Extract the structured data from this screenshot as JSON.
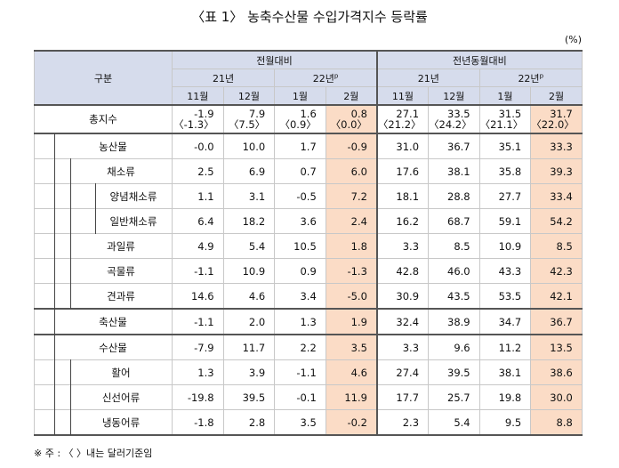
{
  "title": "〈표 1〉 농축수산물 수입가격지수 등락률",
  "unit": "(%)",
  "header": {
    "category": "구분",
    "group_mom": "전월대비",
    "group_yoy": "전년동월대비",
    "year21": "21년",
    "year22": "22년",
    "year22_sup": "p",
    "months": [
      "11월",
      "12월",
      "1월",
      "2월"
    ]
  },
  "rows": [
    {
      "label": "총지수",
      "mom": [
        "-1.9",
        "7.9",
        "1.6",
        "0.8"
      ],
      "mom2": [
        "〈-1.3〉",
        "〈7.5〉",
        "〈0.9〉",
        "〈0.0〉"
      ],
      "yoy": [
        "27.1",
        "33.5",
        "31.5",
        "31.7"
      ],
      "yoy2": [
        "〈21.2〉",
        "〈24.2〉",
        "〈21.1〉",
        "〈22.0〉"
      ]
    },
    {
      "label": "농산물",
      "mom": [
        "-0.0",
        "10.0",
        "1.7",
        "-0.9"
      ],
      "yoy": [
        "31.0",
        "36.7",
        "35.1",
        "33.3"
      ]
    },
    {
      "label": "채소류",
      "mom": [
        "2.5",
        "6.9",
        "0.7",
        "6.0"
      ],
      "yoy": [
        "17.6",
        "38.1",
        "35.8",
        "39.3"
      ]
    },
    {
      "label": "양념채소류",
      "mom": [
        "1.1",
        "3.1",
        "-0.5",
        "7.2"
      ],
      "yoy": [
        "18.1",
        "28.8",
        "27.7",
        "33.4"
      ]
    },
    {
      "label": "일반채소류",
      "mom": [
        "6.4",
        "18.2",
        "3.6",
        "2.4"
      ],
      "yoy": [
        "16.2",
        "68.7",
        "59.1",
        "54.2"
      ]
    },
    {
      "label": "과일류",
      "mom": [
        "4.9",
        "5.4",
        "10.5",
        "1.8"
      ],
      "yoy": [
        "3.3",
        "8.5",
        "10.9",
        "8.5"
      ]
    },
    {
      "label": "곡물류",
      "mom": [
        "-1.1",
        "10.9",
        "0.9",
        "-1.3"
      ],
      "yoy": [
        "42.8",
        "46.0",
        "43.3",
        "42.3"
      ]
    },
    {
      "label": "견과류",
      "mom": [
        "14.6",
        "4.6",
        "3.4",
        "-5.0"
      ],
      "yoy": [
        "30.9",
        "43.5",
        "53.5",
        "42.1"
      ]
    },
    {
      "label": "축산물",
      "mom": [
        "-1.1",
        "2.0",
        "1.3",
        "1.9"
      ],
      "yoy": [
        "32.4",
        "38.9",
        "34.7",
        "36.7"
      ]
    },
    {
      "label": "수산물",
      "mom": [
        "-7.9",
        "11.7",
        "2.2",
        "3.5"
      ],
      "yoy": [
        "3.3",
        "9.6",
        "11.2",
        "13.5"
      ]
    },
    {
      "label": "활어",
      "mom": [
        "1.3",
        "3.9",
        "-1.1",
        "4.6"
      ],
      "yoy": [
        "27.4",
        "39.5",
        "38.1",
        "38.6"
      ]
    },
    {
      "label": "신선어류",
      "mom": [
        "-19.8",
        "39.5",
        "-0.1",
        "11.9"
      ],
      "yoy": [
        "17.7",
        "25.7",
        "19.8",
        "30.0"
      ]
    },
    {
      "label": "냉동어류",
      "mom": [
        "-1.8",
        "2.8",
        "3.5",
        "-0.2"
      ],
      "yoy": [
        "2.3",
        "5.4",
        "9.5",
        "8.8"
      ]
    }
  ],
  "note": "※ 주 : 〈 〉내는 달러기준임",
  "colors": {
    "header_bg": "#d6dcec",
    "highlight_bg": "#fbdcc6"
  }
}
